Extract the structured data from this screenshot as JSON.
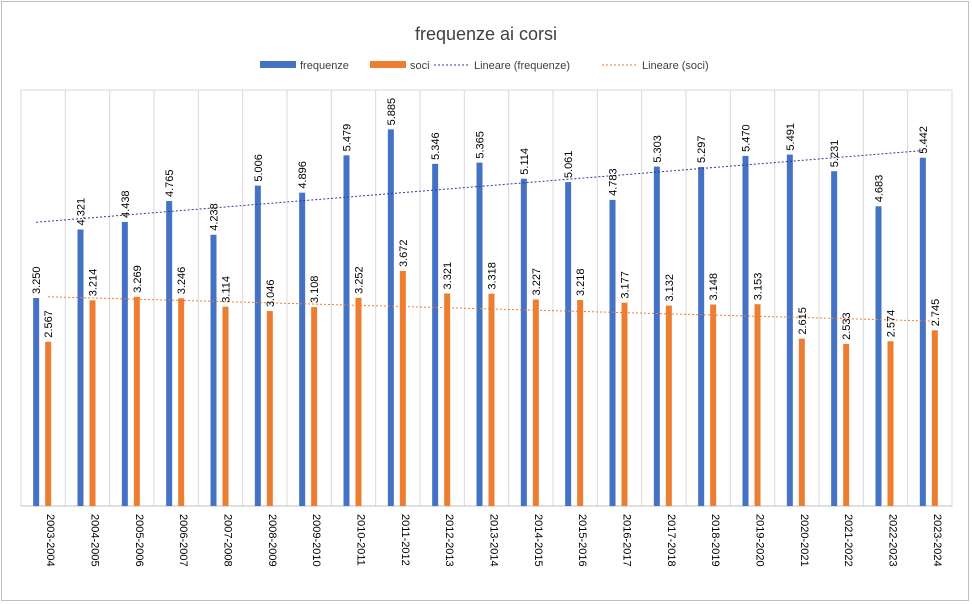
{
  "chart_data": {
    "type": "bar",
    "title": "frequenze ai corsi",
    "xlabel": "",
    "ylabel": "",
    "ylim": [
      0,
      6.5
    ],
    "grid": {
      "vertical": true,
      "horizontal": false
    },
    "legend_position": "top",
    "categories": [
      "2003-2004",
      "2004-2005",
      "2005-2006",
      "2006-2007",
      "2007-2008",
      "2008-2009",
      "2009-2010",
      "2010-2011",
      "2011-2012",
      "2012-2013",
      "2013-2014",
      "2014-2015",
      "2015-2016",
      "2016-2017",
      "2017-2018",
      "2018-2019",
      "2019-2020",
      "2020-2021",
      "2021-2022",
      "2022-2023",
      "2023-2024"
    ],
    "series": [
      {
        "name": "frequenze",
        "color": "#4472c4",
        "values": [
          3.25,
          4.321,
          4.438,
          4.765,
          4.238,
          5.006,
          4.896,
          5.479,
          5.885,
          5.346,
          5.365,
          5.114,
          5.061,
          4.783,
          5.303,
          5.297,
          5.47,
          5.491,
          5.231,
          4.683,
          5.442
        ],
        "labels": [
          "3.250",
          "4.321",
          "4.438",
          "4.765",
          "4.238",
          "5.006",
          "4.896",
          "5.479",
          "5.885",
          "5.346",
          "5.365",
          "5.114",
          "5.061",
          "4.783",
          "5.303",
          "5.297",
          "5.470",
          "5.491",
          "5.231",
          "4.683",
          "5.442"
        ]
      },
      {
        "name": "soci",
        "color": "#ed7d31",
        "values": [
          2.567,
          3.214,
          3.269,
          3.246,
          3.114,
          3.046,
          3.108,
          3.252,
          3.672,
          3.321,
          3.318,
          3.227,
          3.218,
          3.177,
          3.132,
          3.148,
          3.153,
          2.615,
          2.533,
          2.574,
          2.745
        ],
        "labels": [
          "2.567",
          "3.214",
          "3.269",
          "3.246",
          "3.114",
          "3.046",
          "3.108",
          "3.252",
          "3.672",
          "3.321",
          "3.318",
          "3.227",
          "3.218",
          "3.177",
          "3.132",
          "3.148",
          "3.153",
          "2.615",
          "2.533",
          "2.574",
          "2.745"
        ]
      }
    ],
    "trendlines": [
      {
        "name": "Lineare (frequenze)",
        "series": "frequenze",
        "color": "#2e3b8c",
        "style": "dotted"
      },
      {
        "name": "Lineare (soci)",
        "series": "soci",
        "color": "#ed7d31",
        "style": "dotted"
      }
    ]
  }
}
